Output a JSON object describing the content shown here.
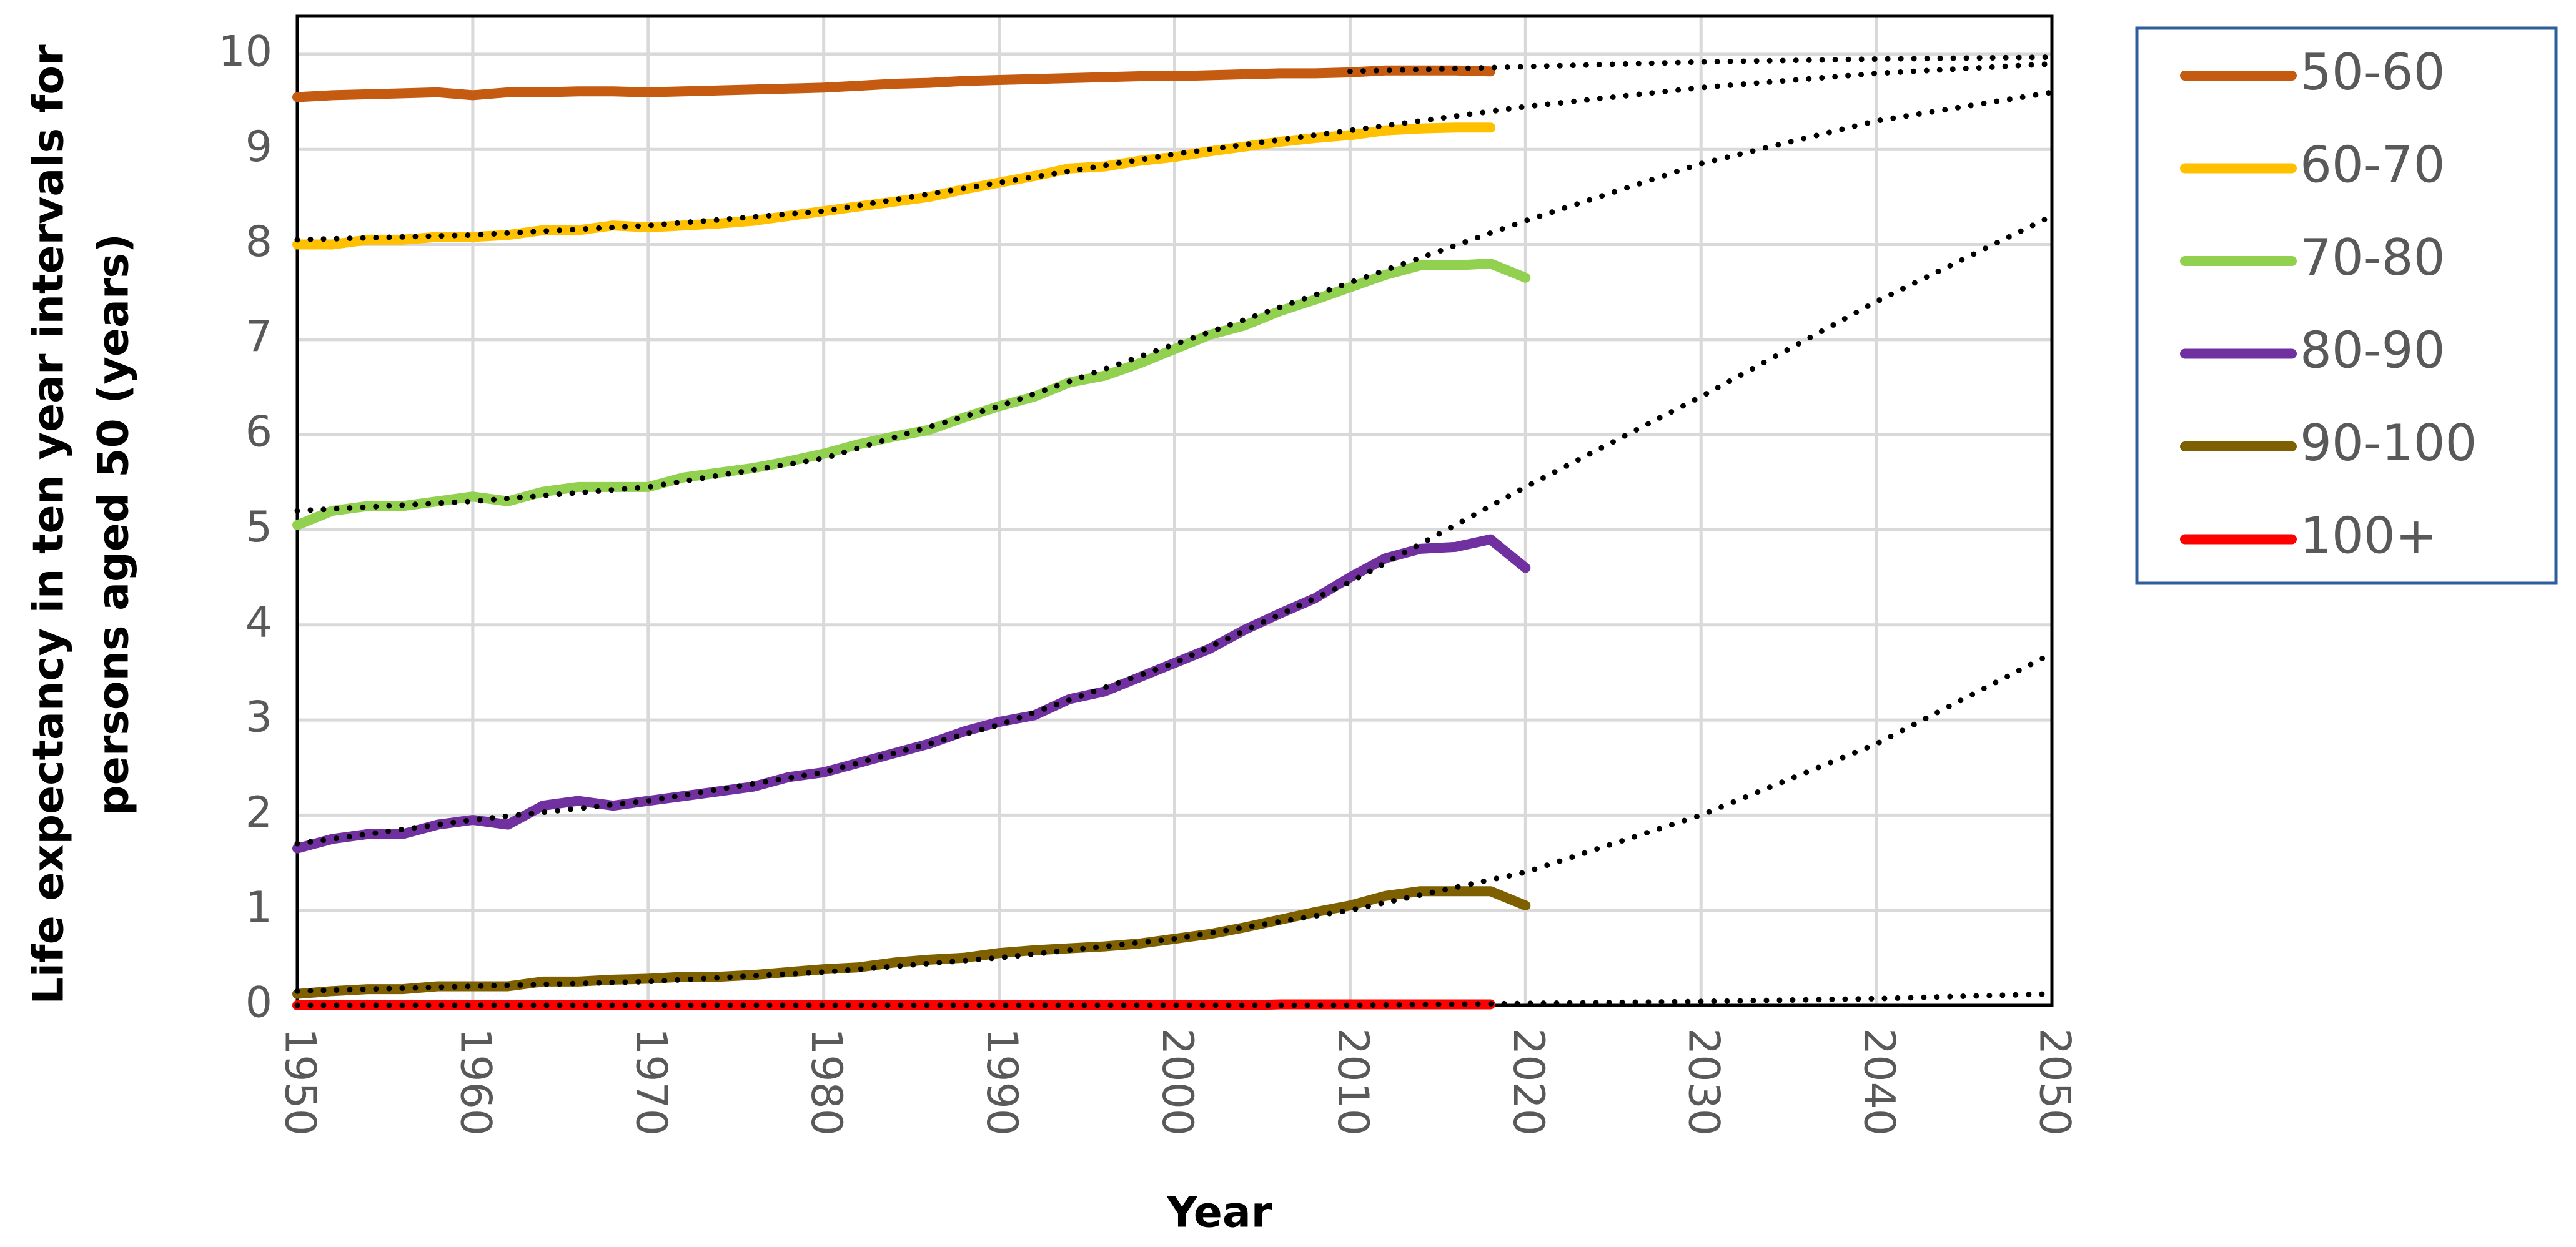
{
  "chart_data": {
    "type": "line",
    "y_label": [
      "Life expectancy in ten year intervals for",
      "persons aged 50 (years)"
    ],
    "x_label": "Year",
    "x": [
      1950,
      1952,
      1954,
      1956,
      1958,
      1960,
      1962,
      1964,
      1966,
      1968,
      1970,
      1972,
      1974,
      1976,
      1978,
      1980,
      1982,
      1984,
      1986,
      1988,
      1990,
      1992,
      1994,
      1996,
      1998,
      2000,
      2002,
      2004,
      2006,
      2008,
      2010,
      2012,
      2014,
      2016,
      2018,
      2020
    ],
    "series": [
      {
        "name": "50-60",
        "color": "#c55a11",
        "values": [
          9.55,
          9.57,
          9.58,
          9.59,
          9.6,
          9.57,
          9.6,
          9.6,
          9.61,
          9.61,
          9.6,
          9.61,
          9.62,
          9.63,
          9.64,
          9.65,
          9.67,
          9.69,
          9.7,
          9.72,
          9.73,
          9.74,
          9.75,
          9.76,
          9.77,
          9.77,
          9.78,
          9.79,
          9.8,
          9.8,
          9.81,
          9.83,
          9.83,
          9.83,
          9.82,
          null
        ]
      },
      {
        "name": "60-70",
        "color": "#ffc000",
        "values": [
          8.0,
          8.0,
          8.05,
          8.05,
          8.08,
          8.08,
          8.1,
          8.15,
          8.15,
          8.2,
          8.18,
          8.2,
          8.22,
          8.25,
          8.3,
          8.35,
          8.4,
          8.45,
          8.5,
          8.58,
          8.65,
          8.72,
          8.8,
          8.82,
          8.88,
          8.92,
          8.98,
          9.03,
          9.08,
          9.12,
          9.15,
          9.2,
          9.22,
          9.23,
          9.23,
          null
        ]
      },
      {
        "name": "70-80",
        "color": "#92d050",
        "values": [
          5.05,
          5.2,
          5.25,
          5.25,
          5.3,
          5.35,
          5.3,
          5.4,
          5.45,
          5.45,
          5.45,
          5.55,
          5.6,
          5.65,
          5.72,
          5.8,
          5.9,
          5.98,
          6.05,
          6.18,
          6.3,
          6.4,
          6.55,
          6.62,
          6.75,
          6.9,
          7.05,
          7.15,
          7.3,
          7.42,
          7.55,
          7.68,
          7.78,
          7.78,
          7.8,
          7.65
        ]
      },
      {
        "name": "80-90",
        "color": "#7030a0",
        "values": [
          1.65,
          1.75,
          1.8,
          1.8,
          1.9,
          1.95,
          1.9,
          2.1,
          2.15,
          2.1,
          2.15,
          2.2,
          2.25,
          2.3,
          2.4,
          2.45,
          2.55,
          2.65,
          2.75,
          2.88,
          2.98,
          3.05,
          3.22,
          3.3,
          3.45,
          3.6,
          3.75,
          3.95,
          4.12,
          4.28,
          4.5,
          4.7,
          4.8,
          4.82,
          4.9,
          4.6
        ]
      },
      {
        "name": "90-100",
        "color": "#7f6000",
        "values": [
          0.12,
          0.15,
          0.17,
          0.17,
          0.2,
          0.2,
          0.2,
          0.25,
          0.25,
          0.27,
          0.28,
          0.3,
          0.3,
          0.32,
          0.35,
          0.38,
          0.4,
          0.45,
          0.48,
          0.5,
          0.55,
          0.58,
          0.6,
          0.62,
          0.65,
          0.7,
          0.75,
          0.82,
          0.9,
          0.98,
          1.05,
          1.15,
          1.2,
          1.2,
          1.2,
          1.05
        ]
      },
      {
        "name": "100+",
        "color": "#ff0000",
        "values": [
          0,
          0,
          0,
          0,
          0,
          0,
          0,
          0,
          0,
          0,
          0,
          0,
          0,
          0,
          0,
          0,
          0,
          0,
          0,
          0,
          0,
          0,
          0,
          0,
          0,
          0,
          0,
          0,
          0.01,
          0.01,
          0.01,
          0.01,
          0.01,
          0.01,
          0.01,
          null
        ]
      }
    ],
    "trend_lines": {
      "color": "#000000",
      "x": [
        1950,
        1960,
        1970,
        1980,
        1990,
        2000,
        2010,
        2020,
        2030,
        2040,
        2050
      ],
      "values": [
        [
          null,
          null,
          null,
          null,
          null,
          null,
          9.82,
          9.87,
          9.92,
          9.95,
          9.97
        ],
        [
          8.05,
          8.1,
          8.2,
          8.35,
          8.65,
          8.95,
          9.2,
          9.45,
          9.65,
          9.8,
          9.9
        ],
        [
          5.2,
          5.3,
          5.45,
          5.75,
          6.3,
          6.95,
          7.6,
          8.25,
          8.85,
          9.3,
          9.6
        ],
        [
          1.7,
          1.95,
          2.15,
          2.45,
          2.95,
          3.6,
          4.45,
          5.45,
          6.4,
          7.4,
          8.3
        ],
        [
          0.15,
          0.2,
          0.25,
          0.35,
          0.5,
          0.7,
          1.0,
          1.4,
          2.0,
          2.75,
          3.7
        ],
        [
          0,
          0,
          0,
          0,
          0,
          0,
          0,
          0.02,
          0.04,
          0.07,
          0.12
        ]
      ]
    },
    "xlim": [
      1950,
      2050
    ],
    "xticks": [
      1950,
      1960,
      1970,
      1980,
      1990,
      2000,
      2010,
      2020,
      2030,
      2040,
      2050
    ],
    "ylim": [
      0,
      10.4
    ],
    "yticks": [
      0,
      1,
      2,
      3,
      4,
      5,
      6,
      7,
      8,
      9,
      10
    ],
    "grid": true,
    "legend": "right"
  }
}
